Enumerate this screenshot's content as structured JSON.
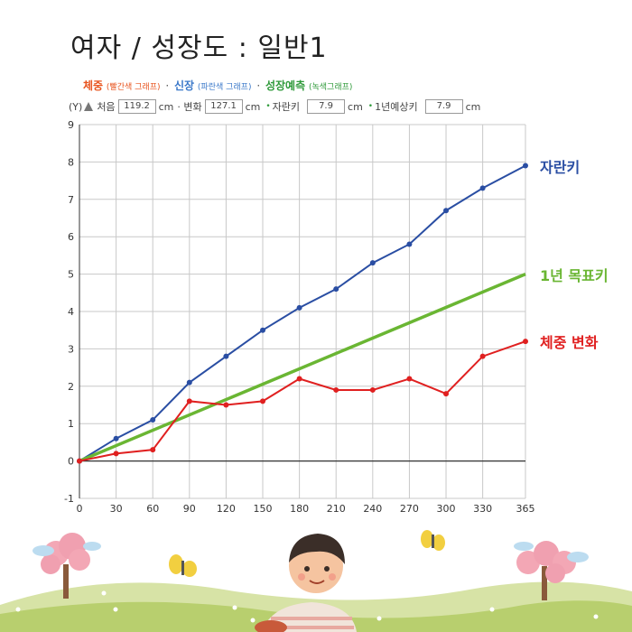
{
  "title": "여자 / 성장도 : 일반1",
  "legend": {
    "weight": {
      "label": "체중",
      "sub": "(빨간색 그래프)"
    },
    "height": {
      "label": "신장",
      "sub": "(파란색 그래프)"
    },
    "prediction": {
      "label": "성장예측",
      "sub": "(녹색그래프)"
    },
    "separator": "·"
  },
  "info": {
    "y_label": "(Y)",
    "initial_label": "처음",
    "initial_value": "119.2",
    "unit1": "cm",
    "change_label": "· 변화",
    "change_value": "127.1",
    "unit2": "cm",
    "grow_label": "자란키",
    "grow_value": "7.9",
    "unit3": "cm",
    "expected_label": "1년예상키",
    "expected_value": "7.9",
    "unit4": "cm"
  },
  "colors": {
    "height": "#2a4ea3",
    "weight": "#e02020",
    "prediction": "#6ab633",
    "axis": "#333333",
    "grid": "#c8c8c8"
  },
  "chart_data": {
    "type": "line",
    "x_ticks": [
      0,
      30,
      60,
      90,
      120,
      150,
      180,
      210,
      240,
      270,
      300,
      330,
      365
    ],
    "y_ticks": [
      -1,
      0,
      1,
      2,
      3,
      4,
      5,
      6,
      7,
      8,
      9
    ],
    "xlim": [
      0,
      365
    ],
    "ylim": [
      -1,
      9
    ],
    "grid": true,
    "series": [
      {
        "name": "자란키",
        "key": "height",
        "x": [
          0,
          30,
          60,
          90,
          120,
          150,
          180,
          210,
          240,
          270,
          300,
          330,
          365
        ],
        "values": [
          0,
          0.6,
          1.1,
          2.1,
          2.8,
          3.5,
          4.1,
          4.6,
          5.3,
          5.8,
          6.7,
          7.3,
          7.9
        ],
        "markers": true
      },
      {
        "name": "1년 목표키",
        "key": "prediction",
        "x": [
          0,
          365
        ],
        "values": [
          0,
          5
        ],
        "markers": false
      },
      {
        "name": "체중 변화",
        "key": "weight",
        "x": [
          0,
          30,
          60,
          90,
          120,
          150,
          180,
          210,
          240,
          270,
          300,
          330,
          365
        ],
        "values": [
          0,
          0.2,
          0.3,
          1.6,
          1.5,
          1.6,
          2.2,
          1.9,
          1.9,
          2.2,
          1.8,
          2.8,
          3.2
        ],
        "markers": true
      }
    ]
  }
}
